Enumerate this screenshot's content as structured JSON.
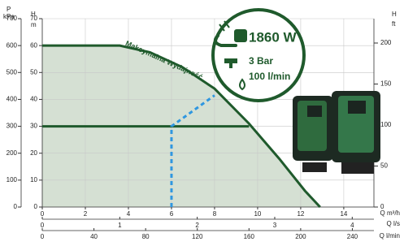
{
  "chart_data": {
    "type": "line",
    "series": [
      {
        "name": "Maksymalna Wydajność",
        "color": "#1f5a2c",
        "area_color": "#d5e0d3",
        "x": [
          0,
          3.6,
          5,
          6.5,
          8,
          9.6,
          11,
          12.2,
          12.9
        ],
        "values": [
          60,
          60,
          57.5,
          52,
          44,
          31,
          18,
          6,
          0
        ]
      }
    ],
    "operating_line": {
      "color": "#1f5a2c",
      "y": 30,
      "x_end": 9.6
    },
    "dashed_line": {
      "color": "#2f97e0",
      "x": [
        6,
        6,
        8
      ],
      "values": [
        0,
        30,
        41.5
      ]
    },
    "xlim": [
      0,
      15.4
    ],
    "xticks": [
      0,
      2,
      4,
      6,
      8,
      10,
      12,
      14
    ],
    "xlabel": "Q m³/h",
    "x2lim": [
      0,
      4.28
    ],
    "x2ticks": [
      0,
      1,
      2,
      3,
      4
    ],
    "x2label": "Q l/s",
    "x3lim": [
      0,
      256.7
    ],
    "x3ticks": [
      0,
      40,
      80,
      120,
      160,
      200,
      240
    ],
    "x3label": "Q l/min",
    "ylim": [
      0,
      70
    ],
    "yticks": [
      0,
      10,
      20,
      30,
      40,
      50,
      60,
      70
    ],
    "ylabel": [
      "H",
      "m"
    ],
    "y2lim": [
      0,
      700
    ],
    "y2ticks": [
      0,
      100,
      200,
      300,
      400,
      500,
      600,
      700
    ],
    "y2label": [
      "P",
      "kPa"
    ],
    "y3lim": [
      0,
      229.7
    ],
    "y3ticks": [
      0,
      50,
      100,
      150,
      200
    ],
    "y3label": [
      "H",
      "ft"
    ],
    "grid": true,
    "badge": {
      "power": "1860 W",
      "pressure": "3 Bar",
      "flow": "100 l/min"
    }
  }
}
